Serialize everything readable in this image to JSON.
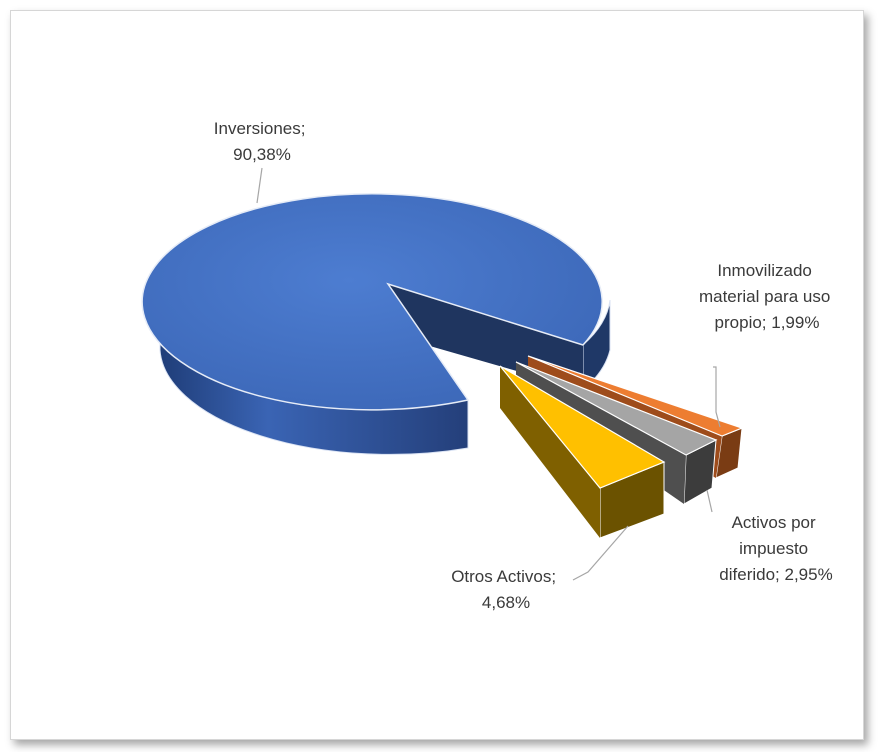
{
  "chart_data": {
    "type": "pie",
    "slices": [
      {
        "label": "Inversiones",
        "value": 90.38,
        "value_text": "90,38%",
        "color": "#4472c4"
      },
      {
        "label": "Inmovilizado material para uso propio",
        "value": 1.99,
        "value_text": "1,99%",
        "color": "#ed7d31"
      },
      {
        "label": "Activos por impuesto diferido",
        "value": 2.95,
        "value_text": "2,95%",
        "color": "#a5a5a5"
      },
      {
        "label": "Otros Activos",
        "value": 4.68,
        "value_text": "4,68%",
        "color": "#ffc000"
      }
    ],
    "legend": "none",
    "data_labels": "outside-with-leader-lines"
  },
  "labels": {
    "inversiones": [
      "Inversiones;",
      "90,38%"
    ],
    "inmovilizado": [
      "Inmovilizado",
      "material para uso",
      "propio; 1,99%"
    ],
    "activos_impuesto": [
      "Activos por",
      "impuesto",
      "diferido; 2,95%"
    ],
    "otros": [
      "Otros Activos;",
      "4,68%"
    ]
  }
}
